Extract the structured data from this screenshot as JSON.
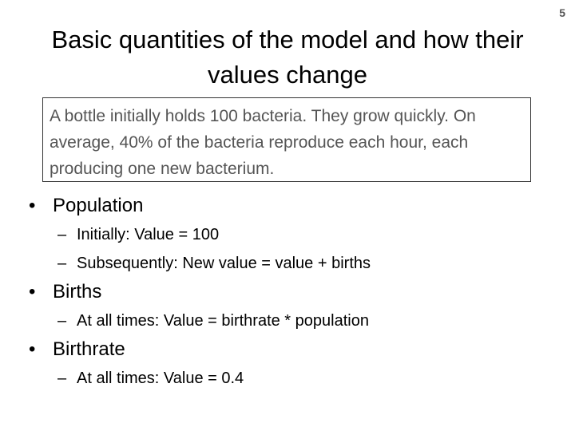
{
  "slide": {
    "number": "5",
    "title": "Basic quantities of the model and how their values change",
    "box_text": "A bottle initially holds 100 bacteria.  They grow quickly.  On average, 40% of the bacteria reproduce each hour, each producing one new bacterium."
  },
  "bullets": [
    {
      "label": "Population",
      "subs": [
        "Initially: Value = 100",
        "Subsequently:  New value = value + births"
      ]
    },
    {
      "label": "Births",
      "subs": [
        "At all times: Value = birthrate * population"
      ]
    },
    {
      "label": "Birthrate",
      "subs": [
        "At all times: Value = 0.4"
      ]
    }
  ],
  "markers": {
    "level1": "•",
    "level2": "–"
  }
}
